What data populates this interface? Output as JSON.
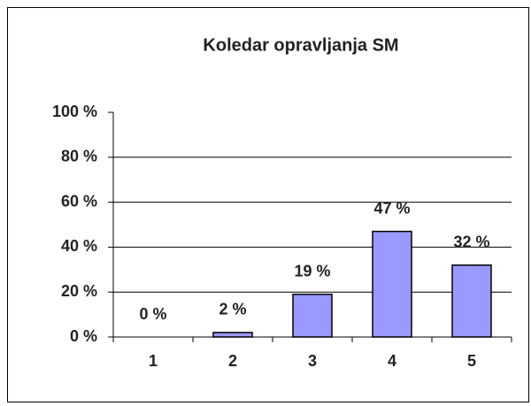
{
  "chart_data": {
    "type": "bar",
    "title": "Koledar opravljanja SM",
    "categories": [
      "1",
      "2",
      "3",
      "4",
      "5"
    ],
    "values": [
      0,
      2,
      19,
      47,
      32
    ],
    "value_labels": [
      "0 %",
      "2 %",
      "19 %",
      "47 %",
      "32 %"
    ],
    "color": "#9999ff",
    "ylim": [
      0,
      100
    ],
    "yticks": [
      {
        "value": 0,
        "label": "0 %"
      },
      {
        "value": 20,
        "label": "20 %"
      },
      {
        "value": 40,
        "label": "40 %"
      },
      {
        "value": 60,
        "label": "60 %"
      },
      {
        "value": 80,
        "label": "80 %"
      },
      {
        "value": 100,
        "label": "100 %"
      }
    ],
    "grid": true
  }
}
